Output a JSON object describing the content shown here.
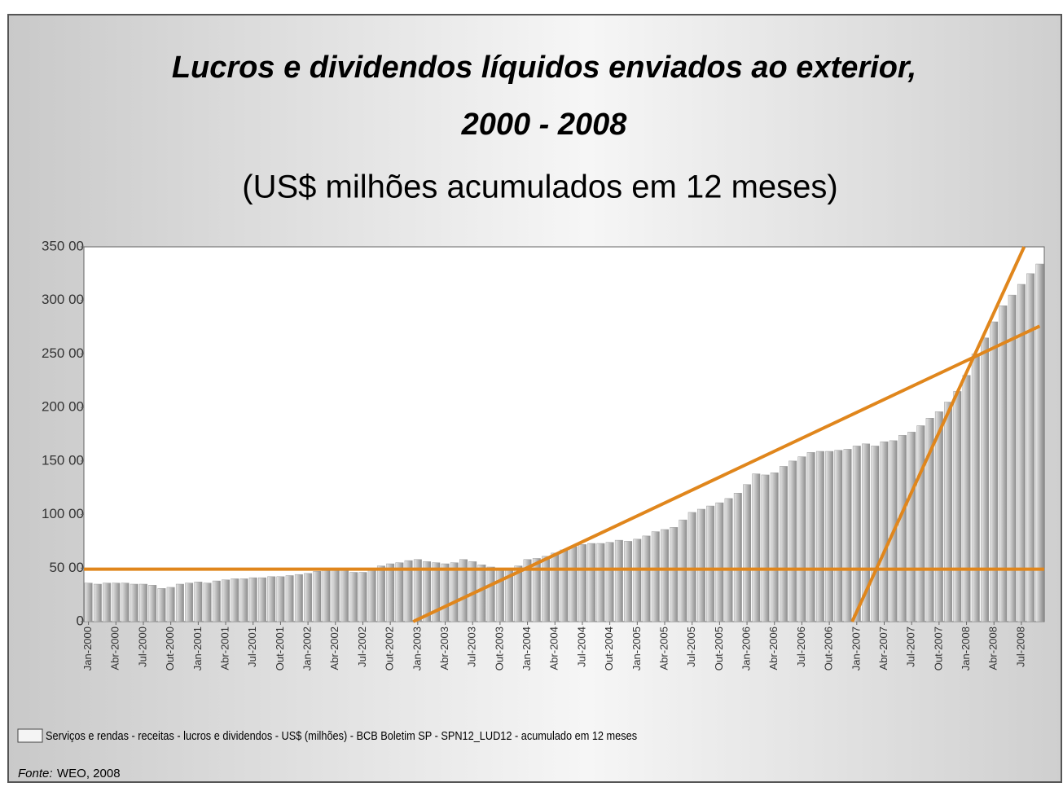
{
  "chart_data": {
    "type": "bar",
    "title": "Lucros e dividendos líquidos enviados ao exterior,",
    "title_line2": "2000 - 2008",
    "subtitle": "(US$ milhões acumulados em 12 meses)",
    "categories": [
      "Jan-2000",
      null,
      null,
      "Abr-2000",
      null,
      null,
      "Jul-2000",
      null,
      null,
      "Out-2000",
      null,
      null,
      "Jan-2001",
      null,
      null,
      "Abr-2001",
      null,
      null,
      "Jul-2001",
      null,
      null,
      "Out-2001",
      null,
      null,
      "Jan-2002",
      null,
      null,
      "Abr-2002",
      null,
      null,
      "Jul-2002",
      null,
      null,
      "Out-2002",
      null,
      null,
      "Jan-2003",
      null,
      null,
      "Abr-2003",
      null,
      null,
      "Jul-2003",
      null,
      null,
      "Out-2003",
      null,
      null,
      "Jan-2004",
      null,
      null,
      "Abr-2004",
      null,
      null,
      "Jul-2004",
      null,
      null,
      "Out-2004",
      null,
      null,
      "Jan-2005",
      null,
      null,
      "Abr-2005",
      null,
      null,
      "Jul-2005",
      null,
      null,
      "Out-2005",
      null,
      null,
      "Jan-2006",
      null,
      null,
      "Abr-2006",
      null,
      null,
      "Jul-2006",
      null,
      null,
      "Out-2006",
      null,
      null,
      "Jan-2007",
      null,
      null,
      "Abr-2007",
      null,
      null,
      "Jul-2007",
      null,
      null,
      "Out-2007",
      null,
      null,
      "Jan-2008",
      null,
      null,
      "Abr-2008",
      null,
      null,
      "Jul-2008",
      null,
      null
    ],
    "series": [
      {
        "name": "Serviços e rendas - receitas - lucros e dividendos - US$ (milhões) - BCB Boletim SP - SPN12_LUD12 - acumulado em 12 meses",
        "color": "#b4b4b4",
        "values": [
          3600,
          3500,
          3600,
          3600,
          3600,
          3500,
          3500,
          3400,
          3100,
          3200,
          3500,
          3600,
          3700,
          3600,
          3800,
          3900,
          4000,
          4000,
          4100,
          4100,
          4200,
          4200,
          4300,
          4400,
          4500,
          4700,
          4900,
          5000,
          4800,
          4600,
          4600,
          4800,
          5200,
          5400,
          5500,
          5700,
          5800,
          5600,
          5500,
          5400,
          5500,
          5800,
          5600,
          5300,
          5100,
          5000,
          5000,
          5200,
          5800,
          5900,
          6100,
          6400,
          6700,
          7000,
          7200,
          7300,
          7300,
          7400,
          7600,
          7500,
          7700,
          8000,
          8400,
          8600,
          8800,
          9500,
          10200,
          10500,
          10800,
          11100,
          11500,
          12000,
          12800,
          13800,
          13700,
          13900,
          14500,
          15000,
          15400,
          15800,
          15900,
          15900,
          16000,
          16100,
          16400,
          16600,
          16400,
          16800,
          16900,
          17400,
          17700,
          18300,
          19000,
          19600,
          20500,
          21500,
          23000,
          25000,
          26500,
          28000,
          29500,
          30500,
          31500,
          32500,
          33400
        ]
      }
    ],
    "ylim": [
      0,
      35000
    ],
    "yticks": [
      0,
      {
        "value": 5000,
        "label": "50 00"
      },
      {
        "value": 10000,
        "label": "100 00"
      },
      {
        "value": 15000,
        "label": "150 00"
      },
      {
        "value": 20000,
        "label": "200 00"
      },
      {
        "value": 25000,
        "label": "250 00"
      },
      {
        "value": 30000,
        "label": "300 00"
      },
      {
        "value": 35000,
        "label": "350 00"
      }
    ],
    "annotation_lines": [
      {
        "from": [
          0,
          4900
        ],
        "to": [
          105,
          4900
        ],
        "color": "#e0861c"
      },
      {
        "from": [
          36,
          0
        ],
        "to": [
          104.5,
          27600
        ],
        "color": "#e0861c"
      },
      {
        "from": [
          84,
          0
        ],
        "to": [
          102.8,
          35000
        ],
        "color": "#e0861c"
      }
    ],
    "source_label": "Fonte:",
    "source": "WEO, 2008"
  }
}
